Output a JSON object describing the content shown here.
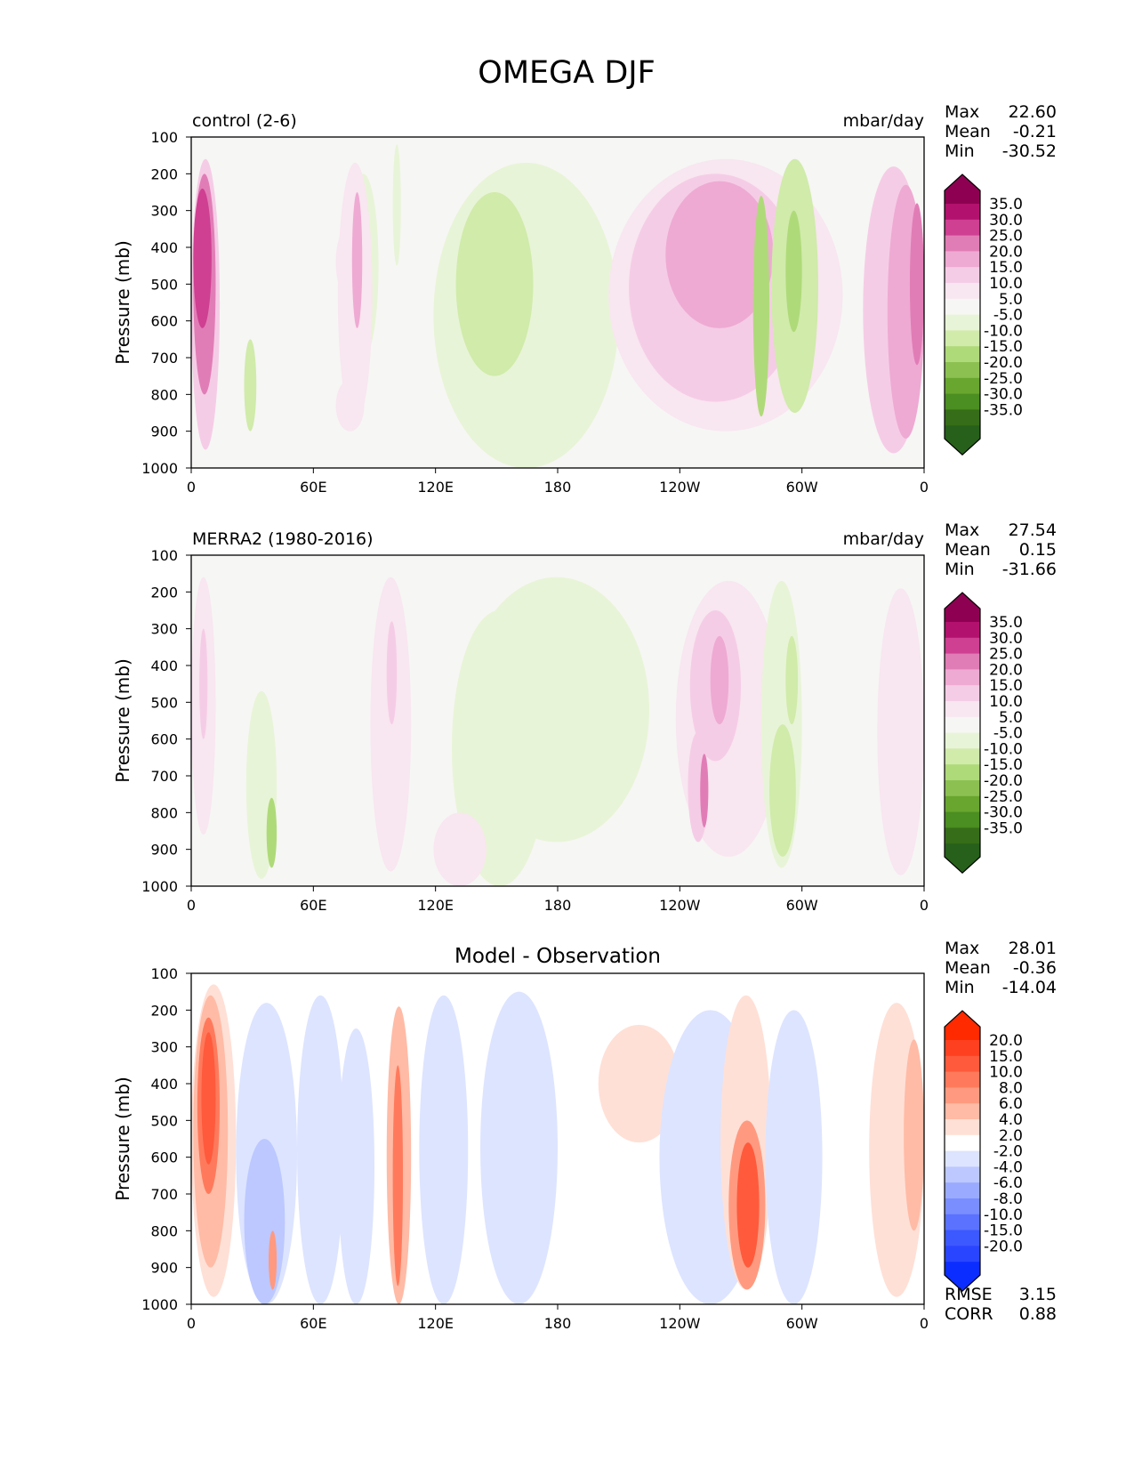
{
  "figure_title": "OMEGA DJF",
  "x_ticks": [
    "0",
    "60E",
    "120E",
    "180",
    "120W",
    "60W",
    "0"
  ],
  "y_ticks": [
    "100",
    "200",
    "300",
    "400",
    "500",
    "600",
    "700",
    "800",
    "900",
    "1000"
  ],
  "chart_data": [
    {
      "type": "heatmap",
      "panel": "control",
      "title_left": "control (2-6)",
      "title_center": "",
      "title_right": "mbar/day",
      "ylabel": "Pressure (mb)",
      "xlim": [
        0,
        360
      ],
      "ylim": [
        1000,
        100
      ],
      "stats": [
        {
          "label": "Max",
          "value": "22.60"
        },
        {
          "label": "Mean",
          "value": "-0.21"
        },
        {
          "label": "Min",
          "value": "-30.52"
        }
      ],
      "colorbar": {
        "labels": [
          "35.0",
          "30.0",
          "25.0",
          "20.0",
          "15.0",
          "10.0",
          "5.0",
          "-5.0",
          "-10.0",
          "-15.0",
          "-20.0",
          "-25.0",
          "-30.0",
          "-35.0"
        ],
        "colors": [
          "#8e0152",
          "#b3116e",
          "#cf3f92",
          "#e17db6",
          "#eeaad3",
          "#f5cce6",
          "#f8e6f0",
          "#f6f6f4",
          "#e8f4d7",
          "#d0ebaa",
          "#afda79",
          "#8cc152",
          "#68a62f",
          "#4b8e21",
          "#356d18",
          "#27601a"
        ]
      },
      "features": [
        {
          "lon": [
            0,
            14
          ],
          "p": [
            160,
            950
          ],
          "level": 2
        },
        {
          "lon": [
            1,
            12
          ],
          "p": [
            200,
            800
          ],
          "level": 4
        },
        {
          "lon": [
            1,
            10
          ],
          "p": [
            240,
            620
          ],
          "level": 5
        },
        {
          "lon": [
            71,
            88
          ],
          "p": [
            330,
            550
          ],
          "level": 1
        },
        {
          "lon": [
            26,
            32
          ],
          "p": [
            650,
            900
          ],
          "level": -2
        },
        {
          "lon": [
            77,
            92
          ],
          "p": [
            200,
            700
          ],
          "level": -1
        },
        {
          "lon": [
            71,
            85
          ],
          "p": [
            760,
            900
          ],
          "level": 1
        },
        {
          "lon": [
            72,
            89
          ],
          "p": [
            170,
            880
          ],
          "level": 1
        },
        {
          "lon": [
            79,
            84
          ],
          "p": [
            250,
            620
          ],
          "level": 3
        },
        {
          "lon": [
            99,
            103
          ],
          "p": [
            120,
            450
          ],
          "level": -1
        },
        {
          "lon": [
            119,
            210
          ],
          "p": [
            170,
            1000
          ],
          "level": -1
        },
        {
          "lon": [
            130,
            168
          ],
          "p": [
            250,
            750
          ],
          "level": -2
        },
        {
          "lon": [
            139,
            145
          ],
          "p": [
            360,
            660
          ],
          "level": -2
        },
        {
          "lon": [
            205,
            320
          ],
          "p": [
            160,
            900
          ],
          "level": 1
        },
        {
          "lon": [
            215,
            300
          ],
          "p": [
            200,
            820
          ],
          "level": 2
        },
        {
          "lon": [
            233,
            286
          ],
          "p": [
            220,
            620
          ],
          "level": 3
        },
        {
          "lon": [
            276,
            284
          ],
          "p": [
            260,
            860
          ],
          "level": -3
        },
        {
          "lon": [
            285,
            308
          ],
          "p": [
            160,
            850
          ],
          "level": -2
        },
        {
          "lon": [
            292,
            300
          ],
          "p": [
            300,
            630
          ],
          "level": -3
        },
        {
          "lon": [
            330,
            360
          ],
          "p": [
            180,
            960
          ],
          "level": 2
        },
        {
          "lon": [
            342,
            360
          ],
          "p": [
            230,
            920
          ],
          "level": 3
        },
        {
          "lon": [
            353,
            360
          ],
          "p": [
            280,
            720
          ],
          "level": 4
        }
      ]
    },
    {
      "type": "heatmap",
      "panel": "observation",
      "title_left": "MERRA2 (1980-2016)",
      "title_center": "",
      "title_right": "mbar/day",
      "ylabel": "Pressure (mb)",
      "xlim": [
        0,
        360
      ],
      "ylim": [
        1000,
        100
      ],
      "stats": [
        {
          "label": "Max",
          "value": "27.54"
        },
        {
          "label": "Mean",
          "value": "0.15"
        },
        {
          "label": "Min",
          "value": "-31.66"
        }
      ],
      "colorbar": {
        "labels": [
          "35.0",
          "30.0",
          "25.0",
          "20.0",
          "15.0",
          "10.0",
          "5.0",
          "-5.0",
          "-10.0",
          "-15.0",
          "-20.0",
          "-25.0",
          "-30.0",
          "-35.0"
        ],
        "colors": [
          "#8e0152",
          "#b3116e",
          "#cf3f92",
          "#e17db6",
          "#eeaad3",
          "#f5cce6",
          "#f8e6f0",
          "#f6f6f4",
          "#e8f4d7",
          "#d0ebaa",
          "#afda79",
          "#8cc152",
          "#68a62f",
          "#4b8e21",
          "#356d18",
          "#27601a"
        ]
      },
      "features": [
        {
          "lon": [
            0,
            12
          ],
          "p": [
            160,
            860
          ],
          "level": 1
        },
        {
          "lon": [
            4,
            8
          ],
          "p": [
            300,
            600
          ],
          "level": 2
        },
        {
          "lon": [
            27,
            42
          ],
          "p": [
            470,
            980
          ],
          "level": -1
        },
        {
          "lon": [
            37,
            42
          ],
          "p": [
            760,
            950
          ],
          "level": -3
        },
        {
          "lon": [
            88,
            108
          ],
          "p": [
            160,
            960
          ],
          "level": 1
        },
        {
          "lon": [
            96,
            101
          ],
          "p": [
            280,
            560
          ],
          "level": 2
        },
        {
          "lon": [
            134,
            225
          ],
          "p": [
            160,
            880
          ],
          "level": -1
        },
        {
          "lon": [
            128,
            175
          ],
          "p": [
            250,
            1000
          ],
          "level": -1
        },
        {
          "lon": [
            119,
            145
          ],
          "p": [
            800,
            1000
          ],
          "level": 1
        },
        {
          "lon": [
            238,
            290
          ],
          "p": [
            170,
            920
          ],
          "level": 1
        },
        {
          "lon": [
            245,
            270
          ],
          "p": [
            250,
            660
          ],
          "level": 2
        },
        {
          "lon": [
            255,
            264
          ],
          "p": [
            320,
            560
          ],
          "level": 3
        },
        {
          "lon": [
            244,
            254
          ],
          "p": [
            580,
            880
          ],
          "level": 2
        },
        {
          "lon": [
            250,
            254
          ],
          "p": [
            640,
            840
          ],
          "level": 4
        },
        {
          "lon": [
            280,
            300
          ],
          "p": [
            170,
            950
          ],
          "level": -1
        },
        {
          "lon": [
            284,
            297
          ],
          "p": [
            560,
            920
          ],
          "level": -2
        },
        {
          "lon": [
            292,
            298
          ],
          "p": [
            320,
            560
          ],
          "level": -2
        },
        {
          "lon": [
            337,
            360
          ],
          "p": [
            190,
            970
          ],
          "level": 1
        }
      ]
    },
    {
      "type": "heatmap",
      "panel": "difference",
      "title_left": "",
      "title_center": "Model - Observation",
      "title_right": "",
      "ylabel": "Pressure (mb)",
      "xlim": [
        0,
        360
      ],
      "ylim": [
        1000,
        100
      ],
      "stats": [
        {
          "label": "Max",
          "value": "28.01"
        },
        {
          "label": "Mean",
          "value": "-0.36"
        },
        {
          "label": "Min",
          "value": "-14.04"
        }
      ],
      "colorbar": {
        "labels": [
          "20.0",
          "15.0",
          "10.0",
          "8.0",
          "6.0",
          "4.0",
          "2.0",
          "-2.0",
          "-4.0",
          "-6.0",
          "-8.0",
          "-10.0",
          "-15.0",
          "-20.0"
        ],
        "colors": [
          "#ff2a00",
          "#ff4020",
          "#ff5a3c",
          "#ff7a5c",
          "#ff9a80",
          "#ffbba6",
          "#ffe0d6",
          "#ffffff",
          "#dde4ff",
          "#bcc8ff",
          "#9aabff",
          "#7a8eff",
          "#5a72ff",
          "#3c58ff",
          "#2a45ff",
          "#0c2dff"
        ]
      },
      "features": [
        {
          "lon": [
            0,
            22
          ],
          "p": [
            130,
            980
          ],
          "level": 1
        },
        {
          "lon": [
            1,
            18
          ],
          "p": [
            160,
            900
          ],
          "level": 2
        },
        {
          "lon": [
            3,
            14
          ],
          "p": [
            220,
            700
          ],
          "level": 4
        },
        {
          "lon": [
            5,
            12
          ],
          "p": [
            260,
            620
          ],
          "level": 5
        },
        {
          "lon": [
            22,
            52
          ],
          "p": [
            180,
            1000
          ],
          "level": -1
        },
        {
          "lon": [
            26,
            46
          ],
          "p": [
            550,
            1000
          ],
          "level": -2
        },
        {
          "lon": [
            38,
            42
          ],
          "p": [
            800,
            960
          ],
          "level": 3
        },
        {
          "lon": [
            52,
            75
          ],
          "p": [
            160,
            1000
          ],
          "level": -1
        },
        {
          "lon": [
            72,
            90
          ],
          "p": [
            250,
            1000
          ],
          "level": -1
        },
        {
          "lon": [
            96,
            108
          ],
          "p": [
            190,
            1000
          ],
          "level": 2
        },
        {
          "lon": [
            99,
            104
          ],
          "p": [
            350,
            950
          ],
          "level": 4
        },
        {
          "lon": [
            112,
            136
          ],
          "p": [
            160,
            1000
          ],
          "level": -1
        },
        {
          "lon": [
            142,
            180
          ],
          "p": [
            150,
            1000
          ],
          "level": -1
        },
        {
          "lon": [
            200,
            240
          ],
          "p": [
            240,
            560
          ],
          "level": 1
        },
        {
          "lon": [
            230,
            280
          ],
          "p": [
            200,
            1000
          ],
          "level": -1
        },
        {
          "lon": [
            260,
            285
          ],
          "p": [
            160,
            960
          ],
          "level": 1
        },
        {
          "lon": [
            264,
            282
          ],
          "p": [
            500,
            960
          ],
          "level": 3
        },
        {
          "lon": [
            268,
            279
          ],
          "p": [
            560,
            900
          ],
          "level": 5
        },
        {
          "lon": [
            282,
            310
          ],
          "p": [
            200,
            1000
          ],
          "level": -1
        },
        {
          "lon": [
            333,
            360
          ],
          "p": [
            180,
            980
          ],
          "level": 1
        },
        {
          "lon": [
            350,
            360
          ],
          "p": [
            280,
            800
          ],
          "level": 2
        }
      ],
      "metrics": [
        {
          "label": "RMSE",
          "value": "3.15"
        },
        {
          "label": "CORR",
          "value": "0.88"
        }
      ]
    }
  ]
}
